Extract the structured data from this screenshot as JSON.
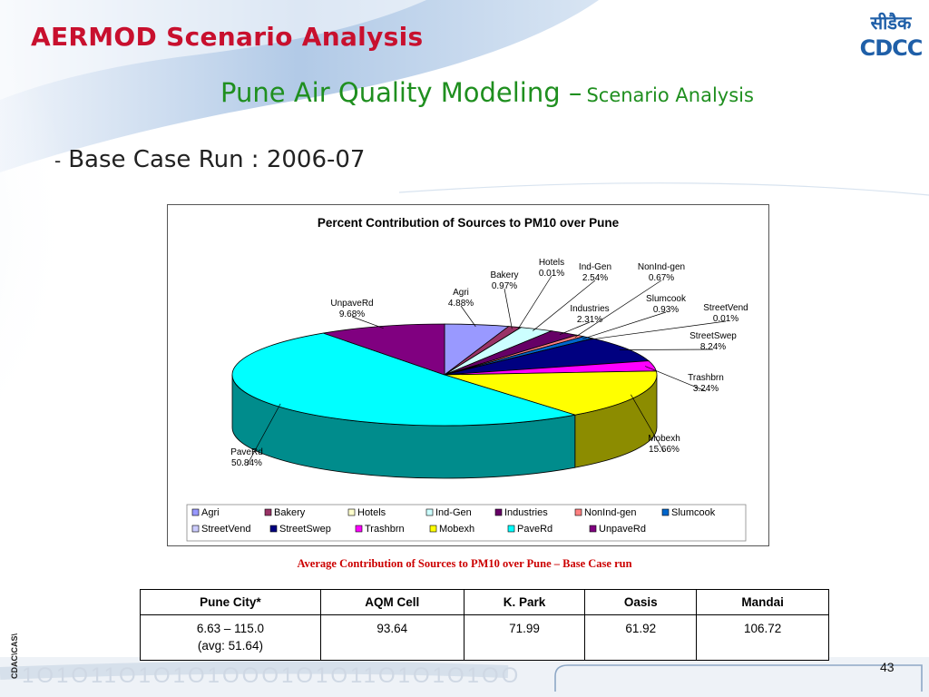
{
  "slide": {
    "title": "AERMOD Scenario Analysis",
    "subtitle_main": "Pune Air Quality Modeling –",
    "subtitle_secondary": "Scenario Analysis",
    "bullet_dash": "-",
    "bullet_text": "Base Case Run : 2006-07",
    "caption": "Average Contribution of Sources to PM10 over Pune – Base Case run",
    "side_label": "CDAC\\CAS\\",
    "page_number": "43",
    "logo": {
      "line1": "सीडैक",
      "line2": "CDCC",
      "color": "#1f5fa8"
    }
  },
  "chart_data": {
    "type": "pie",
    "title": "Percent Contribution of Sources to PM10 over Pune",
    "legend_position": "bottom",
    "slices": [
      {
        "name": "Agri",
        "label": "Agri",
        "value_text": "4.88%",
        "value": 4.88,
        "color": "#9999ff"
      },
      {
        "name": "Bakery",
        "label": "Bakery",
        "value_text": "0.97%",
        "value": 0.97,
        "color": "#993366"
      },
      {
        "name": "Hotels",
        "label": "Hotels",
        "value_text": "0.01%",
        "value": 0.01,
        "color": "#ffffcc"
      },
      {
        "name": "Ind-Gen",
        "label": "Ind-Gen",
        "value_text": "2.54%",
        "value": 2.54,
        "color": "#ccffff"
      },
      {
        "name": "Industries",
        "label": "Industries",
        "value_text": "2.31%",
        "value": 2.31,
        "color": "#660066"
      },
      {
        "name": "NonInd-gen",
        "label": "NonInd-gen",
        "value_text": "0.67%",
        "value": 0.67,
        "color": "#ff8080"
      },
      {
        "name": "Slumcook",
        "label": "Slumcook",
        "value_text": "0.93%",
        "value": 0.93,
        "color": "#0066cc"
      },
      {
        "name": "StreetVend",
        "label": "StreetVend",
        "value_text": "0.01%",
        "value": 0.01,
        "color": "#ccccff"
      },
      {
        "name": "StreetSwep",
        "label": "StreetSwep",
        "value_text": "8.24%",
        "value": 8.24,
        "color": "#000080"
      },
      {
        "name": "Trashbrn",
        "label": "Trashbrn",
        "value_text": "3.24%",
        "value": 3.24,
        "color": "#ff00ff"
      },
      {
        "name": "Mobexh",
        "label": "Mobexh",
        "value_text": "15.66%",
        "value": 15.66,
        "color": "#ffff00"
      },
      {
        "name": "PaveRd",
        "label": "PaveRd",
        "value_text": "50.84%",
        "value": 50.84,
        "color": "#00ffff"
      },
      {
        "name": "UnpaveRd",
        "label": "UnpaveRd",
        "value_text": "9.68%",
        "value": 9.68,
        "color": "#800080"
      }
    ]
  },
  "table": {
    "headers": [
      "Pune City*",
      "AQM Cell",
      "K. Park",
      "Oasis",
      "Mandai"
    ],
    "row": {
      "pune_city_line1": "6.63 – 115.0",
      "pune_city_line2": "(avg: 51.64)",
      "aqm_cell": "93.64",
      "k_park": "71.99",
      "oasis": "61.92",
      "mandai": "106.72"
    }
  }
}
